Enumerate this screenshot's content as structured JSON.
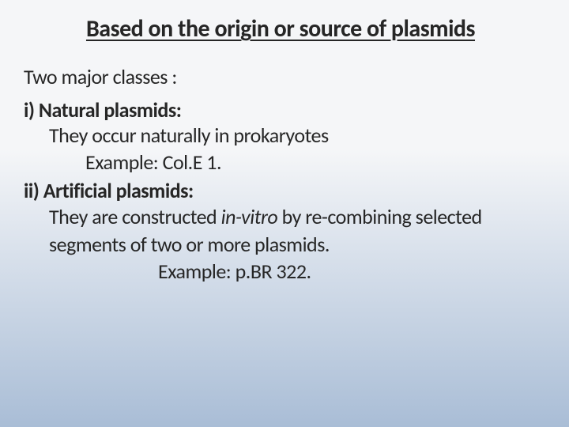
{
  "background": {
    "gradient_start": "#f5f6f8",
    "gradient_end": "#a9bdd6"
  },
  "title": {
    "text": "Based on the origin or source of plasmids",
    "color": "#262626",
    "shadow_color": "rgba(120,120,120,0.5)",
    "fontsize": 30
  },
  "intro": {
    "text": "Two major classes :",
    "color": "#262626",
    "fontsize": 26
  },
  "classes": [
    {
      "heading": "i)  Natural plasmids:",
      "body": "They occur naturally in prokaryotes",
      "example": "Example: Col.E 1."
    },
    {
      "heading": "ii) Artificial plasmids:",
      "body_part1": "They are constructed ",
      "body_italic": "in-vitro ",
      "body_part2": " by re-combining selected segments of two or more plasmids.",
      "example": "Example: p.BR 322."
    }
  ],
  "text_color": "#262626"
}
